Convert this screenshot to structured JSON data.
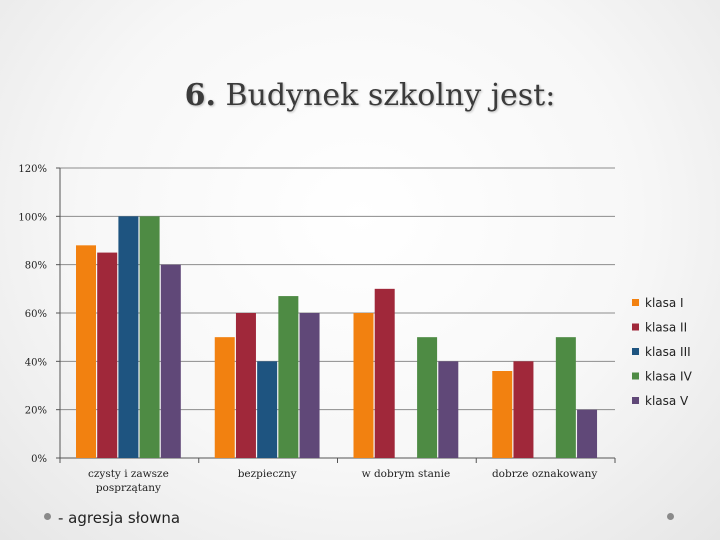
{
  "slide": {
    "title_number": "6.",
    "title_text": "Budynek szkolny jest:",
    "footer_text": "- agresja słowna"
  },
  "chart_data": {
    "type": "bar",
    "categories": [
      [
        "czysty i zawsze",
        "posprzątany"
      ],
      [
        "bezpieczny"
      ],
      [
        "w dobrym stanie"
      ],
      [
        "dobrze oznakowany"
      ]
    ],
    "series": [
      {
        "name": "klasa I",
        "color": "#f28110",
        "values": [
          88,
          50,
          60,
          36
        ]
      },
      {
        "name": "klasa II",
        "color": "#a0283a",
        "values": [
          85,
          60,
          70,
          40
        ]
      },
      {
        "name": "klasa III",
        "color": "#1e5480",
        "values": [
          100,
          40,
          0,
          0
        ]
      },
      {
        "name": "klasa IV",
        "color": "#4e8b44",
        "values": [
          100,
          67,
          50,
          50
        ]
      },
      {
        "name": "klasa V",
        "color": "#604878",
        "values": [
          80,
          60,
          40,
          20
        ]
      }
    ],
    "y_ticks": [
      "0%",
      "20%",
      "40%",
      "60%",
      "80%",
      "100%",
      "120%"
    ],
    "ylim": [
      0,
      120
    ],
    "grid": true,
    "legend_position": "right"
  }
}
